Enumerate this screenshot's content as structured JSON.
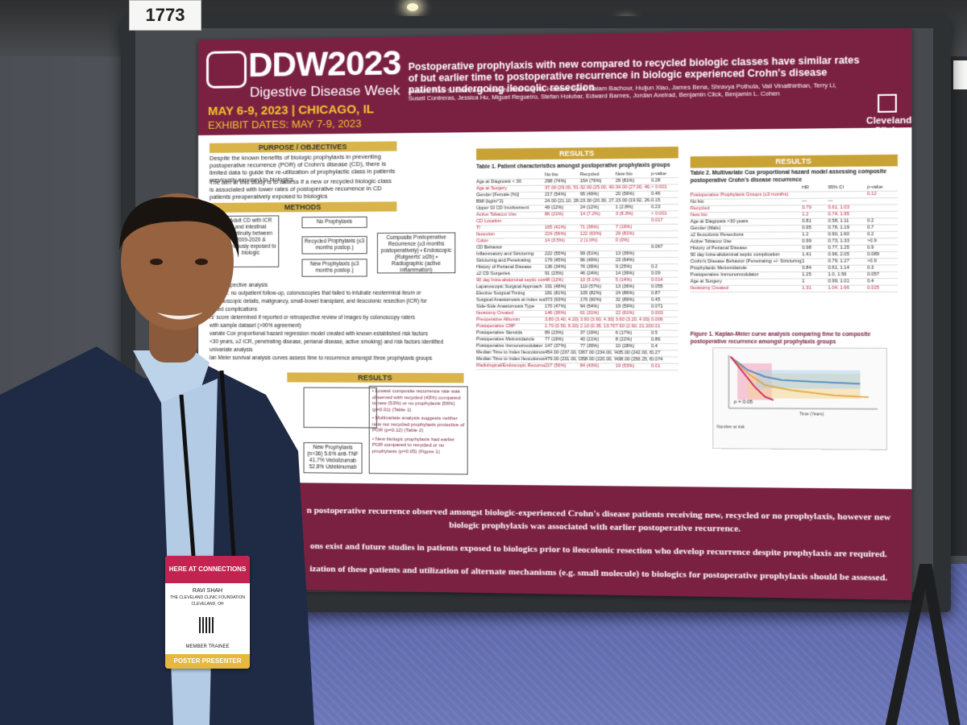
{
  "booth": {
    "number": "1773"
  },
  "poster": {
    "brand": "DDW2023",
    "brand_sub": "Digestive Disease Week",
    "dates": "MAY 6-9, 2023 | CHICAGO, IL",
    "exhibit_dates": "EXHIBIT DATES: MAY 7-9, 2023",
    "title": "Postoperative prophylaxis with new compared to recycled biologic classes have similar rates of but earlier time to postoperative recurrence in biologic experienced Crohn's disease patients undergoing ileocolic resection",
    "authors": "Authors: Ravi S. Shah, Abel Joseph, Adel Hajj Ali, Hareem Syed, Salam Bachour, Huijun Xiao, James Bena, Shravya Pothula, Vali Vinaithirthan, Terry Li, Suseil Contreras, Jessica Hu, Miguel Regueiro, Stefan Holubar, Edward Barnes, Jordan Axelrad, Benjamin Click, Benjamin L. Cohen",
    "clinic": "Cleveland Clinic",
    "sections": {
      "purpose": "PURPOSE / OBJECTIVES",
      "methods": "METHODS",
      "results": "RESULTS",
      "results2": "RESULTS",
      "results3": "RESULTS"
    },
    "purpose_text": "Despite the known benefits of biologic prophylaxis in preventing postoperative recurrence (POR) of Crohn's disease (CD), there is limited data to guide the re-utilization of prophylactic class in patients previously exposed to biologics",
    "aim_text": "The aim of this study is to assess if a new or recycled biologic class is associated with lower rates of postoperative recurrence in CD patients preoperatively exposed to biologics",
    "flow": {
      "cohort": "Adult CD with ICR and intestinal continuity between 2009-2020 & previously exposed to biologic",
      "no_prophylaxis": "No Prophylaxis",
      "recycled": "Recycled Prophylaxis (≤3 months postop.)",
      "new": "New Prophylaxis (≤3 months postop.)",
      "outcome": "Composite Postoperative Recurrence (≥3 months postoperatively) • Endoscopic (Rutgeerts' ≥i2b) • Radiographic (active inflammation)"
    },
    "methods_lines": [
      "ter retrospective analysis",
      "patients: no outpatient follow-up, colonoscopies that failed to intubate neoterminal ileum or",
      "nt endoscopic details, malignancy, small-bowel transplant, and ileocolonic resection (ICR) for",
      "elated complications",
      "rs' score determined if reported or retrospective review of images by colonoscopy raters",
      "with sample dataset (>90% agreement)",
      "variate Cox proportional hazard regression model created with known established risk factors",
      "<30 years, ≥2 ICR, penetrating disease, perianal disease, active smoking) and risk factors identified",
      "univariate analysis",
      "lan Meier survival analysis curves assess time to recurrence amongst three prophylaxis groups"
    ],
    "results_points": [
      "Lowest composite recurrence rate was observed with recycled (43%) compared to new (53%) or no prophylaxis (56%) (p=0.01) (Table 1)",
      "Multivariate analysis suggests neither new nor recycled prophylaxis protective of POR (p=0.12) (Table 2)",
      "New biologic prophylaxis had earlier POR compared to recycled or no prophylaxis (p=0.05) (Figure 1)"
    ],
    "new_prophylaxis_box": "New Prophylaxis (n=36) 5.6% anti-TNF 41.7% Vedolizumab 52.8% Ustekinumab",
    "table1_title": "Table 1. Patient characteristics amongst postoperative prophylaxis groups",
    "table1_header": [
      "",
      "No bio",
      "Recycled",
      "New bio",
      "p-value"
    ],
    "table1_rows": [
      [
        "Age at Diagnosis < 30",
        "298 (74%)",
        "154 (79%)",
        "29 (81%)",
        "0.28"
      ],
      [
        "Age at Surgery",
        "37.00 (29.00, 51.00)",
        "32.00 (25.00, 40.00)",
        "34.00 (27.00, 46.25)",
        "< 0.001"
      ],
      [
        "Gender [Female (%)]",
        "217 (54%)",
        "95 (49%)",
        "20 (56%)",
        "0.46"
      ],
      [
        "BMI (kg/m^2)",
        "24.00 (21.10, 28.08)",
        "23.30 (20.30, 27.10)",
        "23.00 (19.92, 26.85)",
        "0.15"
      ],
      [
        "Upper GI CD Involvement",
        "49 (12%)",
        "24 (12%)",
        "1 (2.8%)",
        "0.23"
      ],
      [
        "Active Tobacco Use",
        "86 (21%)",
        "14 (7.2%)",
        "3 (8.3%)",
        "< 0.001"
      ],
      [
        "CD Location",
        "",
        "",
        "",
        "0.017"
      ],
      [
        "TI",
        "165 (41%)",
        "71 (36%)",
        "7 (19%)",
        ""
      ],
      [
        "Ileocolon",
        "224 (56%)",
        "122 (63%)",
        "29 (81%)",
        ""
      ],
      [
        "Colon",
        "14 (3.5%)",
        "2 (1.0%)",
        "0 (0%)",
        ""
      ],
      [
        "CD Behavior",
        "",
        "",
        "",
        "0.067"
      ],
      [
        "Inflammatory and Stricturing",
        "222 (55%)",
        "99 (51%)",
        "13 (36%)",
        ""
      ],
      [
        "Stricturing and Penetrating",
        "179 (45%)",
        "96 (49%)",
        "23 (64%)",
        ""
      ],
      [
        "History of Perianal Disease",
        "136 (34%)",
        "76 (39%)",
        "9 (25%)",
        "0.2"
      ],
      [
        "≥2 CD Surgeries",
        "91 (23%)",
        "46 (24%)",
        "14 (39%)",
        "0.09"
      ],
      [
        "90 day Intra-abdominal septic complication",
        "48 (12%)",
        "10 (5.1%)",
        "5 (14%)",
        "0.014"
      ],
      [
        "Laparoscopic Surgical Approach",
        "191 (48%)",
        "110 (57%)",
        "13 (36%)",
        "0.055"
      ],
      [
        "Elective Surgical Timing",
        "181 (81%)",
        "105 (82%)",
        "24 (86%)",
        "0.87"
      ],
      [
        "Surgical Anastomosis at index surgery",
        "373 (93%)",
        "176 (90%)",
        "32 (89%)",
        "0.45"
      ],
      [
        "Side-Side Anastomosis Type",
        "170 (47%)",
        "94 (54%)",
        "19 (59%)",
        "0.071"
      ],
      [
        "Ileostomy Created",
        "146 (36%)",
        "61 (31%)",
        "22 (61%)",
        "0.003"
      ],
      [
        "Preoperative Albumin",
        "3.80 (3.40, 4.20)",
        "3.90 (3.60, 4.30)",
        "3.60 (3.20, 4.00)",
        "0.006"
      ],
      [
        "Postoperative CRP",
        "1.70 (0.50, 6.20)",
        "2.10 (0.35, 13.70)",
        "7.60 (2.60, 21.20)",
        "0.01"
      ],
      [
        "Postoperative Steroids",
        "89 (23%)",
        "37 (19%)",
        "6 (17%)",
        "0.5"
      ],
      [
        "Postoperative Metronidazole",
        "77 (19%)",
        "40 (21%)",
        "8 (22%)",
        "0.86"
      ],
      [
        "Postoperative Immunomodulator",
        "147 (37%)",
        "77 (39%)",
        "10 (28%)",
        "0.4"
      ],
      [
        "Median Time to Index Ileocolonoscopy",
        "454.00 (237.00, 990.00)",
        "367.00 (234.00, 782.00)",
        "435.00 (242.00, 674.00)",
        "0.27"
      ],
      [
        "Median Time to Index Ileocolonoscopy or Imaging",
        "479.00 (231.00, 969.50)",
        "358.00 (220.00, 782.00)",
        "438.00 (256.25, 665.75)",
        "0.074"
      ],
      [
        "Radiological/Endoscopic Recurrence",
        "227 (56%)",
        "84 (43%)",
        "19 (53%)",
        "0.01"
      ]
    ],
    "table2_title": "Table 2. Multivariate Cox proportional hazard model assessing composite postoperative Crohn's disease recurrence",
    "table2_header": [
      "",
      "HR",
      "95% CI",
      "p-value"
    ],
    "table2_rows": [
      [
        "Postoperative Prophylaxis Groups (≤3 months)",
        "",
        "",
        "0.12"
      ],
      [
        "No bio",
        "—",
        "—",
        ""
      ],
      [
        "Recycled",
        "0.79",
        "0.61, 1.03",
        ""
      ],
      [
        "New bio",
        "1.2",
        "0.74, 1.95",
        ""
      ],
      [
        "Age at Diagnosis <30 years",
        "0.81",
        "0.58, 1.11",
        "0.2"
      ],
      [
        "Gender (Male)",
        "0.95",
        "0.76, 1.19",
        "0.7"
      ],
      [
        "≥2 Ileocolonic Resections",
        "1.2",
        "0.90, 1.60",
        "0.2"
      ],
      [
        "Active Tobacco Use",
        "0.99",
        "0.73, 1.33",
        ">0.9"
      ],
      [
        "History of Perianal Disease",
        "0.98",
        "0.77, 1.25",
        "0.9"
      ],
      [
        "90 day Intra-abdominal septic complication",
        "1.41",
        "0.96, 2.05",
        "0.089"
      ],
      [
        "Crohn's Disease Behavior (Penetrating +/- Stricturing)",
        "1",
        "0.79, 1.27",
        ">0.9"
      ],
      [
        "Prophylactic Metronidazole",
        "0.84",
        "0.61, 1.14",
        "0.3"
      ],
      [
        "Postoperative Immunomodulator",
        "1.25",
        "1.0, 1.56",
        "0.057"
      ],
      [
        "Age at Surgery",
        "1",
        "0.99, 1.01",
        "0.4"
      ],
      [
        "Ileostomy Created",
        "1.31",
        "1.04, 1.66",
        "0.025"
      ]
    ],
    "figure1_title": "Figure 1. Kaplan-Meier curve analysis comparing time to composite postoperative recurrence amongst prophylaxis groups",
    "km_pvalue": "p = 0.05",
    "km_axis": "Time (Years)",
    "km_risk": "Number at risk",
    "conclusion_lines": [
      "n postoperative recurrence observed amongst biologic-experienced Crohn's disease patients receiving new, recycled or no prophylaxis, however new",
      "biologic prophylaxis was associated with earlier postoperative recurrence.",
      "ons exist and future studies in patients exposed to biologics prior to ileocolonic resection who develop recurrence despite prophylaxis are required.",
      "ization of these patients and utilization of alternate mechanisms (e.g. small molecule) to biologics for postoperative prophylaxis should be assessed."
    ]
  },
  "badge": {
    "event": "HERE AT CONNECTIONS",
    "name": "RAVI SHAH",
    "org": "THE CLEVELAND CLINIC FOUNDATION CLEVELAND, OH",
    "role": "MEMBER TRAINEE",
    "ribbon": "POSTER PRESENTER"
  },
  "colors": {
    "poster_maroon": "#7a2142",
    "poster_gold": "#d8b44a",
    "jacket": "#1f2a44",
    "carpet": "#6470b0"
  }
}
